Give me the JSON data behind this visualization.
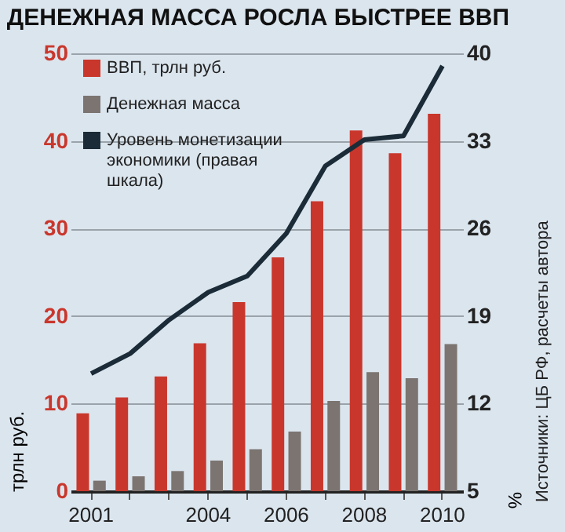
{
  "chart_data": {
    "type": "bar",
    "title": "ДЕНЕЖНАЯ МАССА РОСЛА БЫСТРЕЕ ВВП",
    "ylabel": "трлн руб.",
    "y2label": "%",
    "categories": [
      "2001",
      null,
      null,
      "2004",
      null,
      "2006",
      null,
      "2008",
      null,
      "2010"
    ],
    "series": [
      {
        "name": "ВВП, трлн руб.",
        "color": "#c9372c",
        "values": [
          8.9,
          10.7,
          13.1,
          16.9,
          21.6,
          26.7,
          33.1,
          41.2,
          38.6,
          43.1
        ]
      },
      {
        "name": "Денежная масса",
        "color": "#7b7470",
        "values": [
          1.2,
          1.7,
          2.3,
          3.5,
          4.8,
          6.8,
          10.3,
          13.6,
          12.9,
          16.8
        ]
      },
      {
        "name": "Уровень монетизации экономики (правая шкала)",
        "type": "line",
        "axis": "y2",
        "color": "#1b2c38",
        "values": [
          14.4,
          16.0,
          18.7,
          20.9,
          22.2,
          25.6,
          31.0,
          33.1,
          33.4,
          39.0
        ]
      }
    ],
    "ylim": [
      0,
      50
    ],
    "yticks": [
      0,
      10,
      20,
      30,
      40,
      50
    ],
    "y2lim": [
      5,
      40
    ],
    "y2ticks": [
      5,
      12,
      19,
      26,
      33,
      40
    ],
    "grid": "y",
    "legend": "top left",
    "marker": "none",
    "annotations": [
      "Источники: ЦБ РФ, расчеты автора"
    ]
  }
}
